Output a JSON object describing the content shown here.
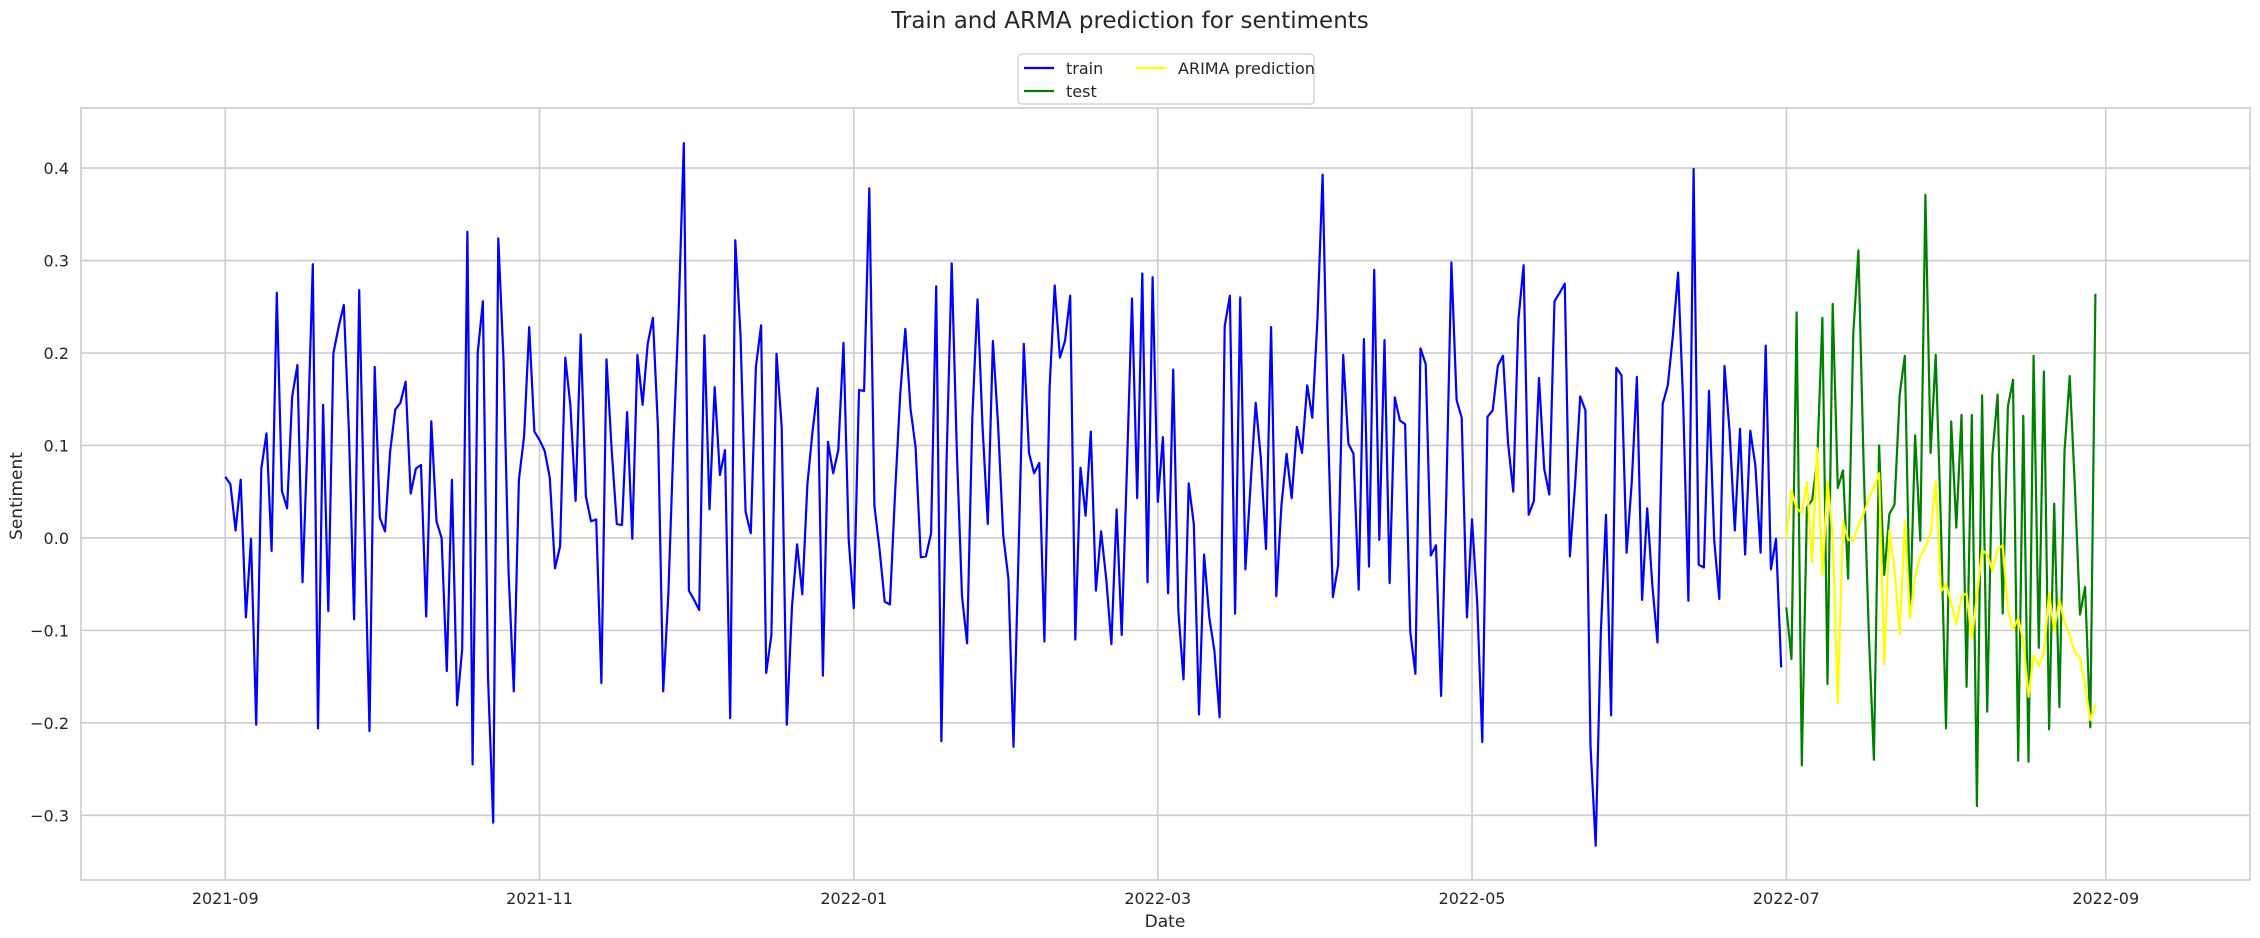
{
  "chart_data": {
    "type": "line",
    "title": "Train and ARMA prediction for sentiments",
    "xlabel": "Date",
    "ylabel": "Sentiment",
    "xlim": [
      "2021-08-04",
      "2022-09-29"
    ],
    "ylim": [
      -0.37,
      0.465
    ],
    "x_ticks": [
      "2021-09",
      "2021-11",
      "2022-01",
      "2022-03",
      "2022-05",
      "2022-07",
      "2022-09"
    ],
    "y_ticks": [
      -0.3,
      -0.2,
      -0.1,
      0.0,
      0.1,
      0.2,
      0.3,
      0.4
    ],
    "grid": true,
    "legend_position": "top-center",
    "series": [
      {
        "name": "train",
        "color": "#0000ff",
        "start_date": "2021-09-01",
        "end_date": "2022-06-30",
        "values": [
          0.066,
          0.058,
          0.008,
          0.063,
          -0.086,
          -0.001,
          -0.202,
          0.075,
          0.113,
          -0.014,
          0.265,
          0.051,
          0.032,
          0.153,
          0.187,
          -0.048,
          0.109,
          0.296,
          -0.206,
          0.144,
          -0.079,
          0.2,
          0.228,
          0.252,
          0.116,
          -0.088,
          0.268,
          0.017,
          -0.209,
          0.185,
          0.022,
          0.007,
          0.093,
          0.139,
          0.146,
          0.169,
          0.048,
          0.075,
          0.079,
          -0.085,
          0.126,
          0.018,
          0.0,
          -0.144,
          0.063,
          -0.181,
          -0.12,
          0.331,
          -0.245,
          0.2,
          0.256,
          -0.15,
          -0.308,
          0.324,
          0.193,
          -0.038,
          -0.166,
          0.063,
          0.11,
          0.228,
          0.115,
          0.106,
          0.094,
          0.065,
          -0.033,
          -0.009,
          0.195,
          0.143,
          0.04,
          0.22,
          0.045,
          0.018,
          0.02,
          -0.157,
          0.193,
          0.095,
          0.015,
          0.014,
          0.136,
          -0.001,
          0.198,
          0.144,
          0.21,
          0.238,
          0.118,
          -0.166,
          -0.062,
          0.103,
          0.243,
          0.427,
          -0.057,
          -0.067,
          -0.078,
          0.219,
          0.031,
          0.163,
          0.068,
          0.095,
          -0.195,
          0.322,
          0.22,
          0.028,
          0.005,
          0.185,
          0.23,
          -0.146,
          -0.105,
          0.199,
          0.12,
          -0.202,
          -0.074,
          -0.007,
          -0.061,
          0.058,
          0.116,
          0.162,
          -0.149,
          0.104,
          0.07,
          0.095,
          0.211,
          -0.002,
          -0.076,
          0.16,
          0.159,
          0.378,
          0.035,
          -0.013,
          -0.069,
          -0.072,
          0.047,
          0.155,
          0.226,
          0.14,
          0.098,
          -0.021,
          -0.02,
          0.005,
          0.272,
          -0.22,
          0.08,
          0.297,
          0.095,
          -0.063,
          -0.114,
          0.129,
          0.258,
          0.119,
          0.015,
          0.213,
          0.122,
          0.003,
          -0.044,
          -0.226,
          -0.01,
          0.21,
          0.092,
          0.07,
          0.081,
          -0.112,
          0.162,
          0.273,
          0.195,
          0.213,
          0.262,
          -0.11,
          0.076,
          0.024,
          0.115,
          -0.057,
          0.007,
          -0.045,
          -0.115,
          0.031,
          -0.105,
          0.074,
          0.259,
          0.043,
          0.286,
          -0.048,
          0.282,
          0.039,
          0.109,
          -0.06,
          0.182,
          -0.08,
          -0.153,
          0.059,
          0.015,
          -0.191,
          -0.018,
          -0.086,
          -0.122,
          -0.194,
          0.229,
          0.262,
          -0.082,
          0.26,
          -0.034,
          0.056,
          0.146,
          0.087,
          -0.012,
          0.228,
          -0.063,
          0.035,
          0.091,
          0.043,
          0.12,
          0.092,
          0.165,
          0.13,
          0.238,
          0.393,
          0.129,
          -0.064,
          -0.03,
          0.198,
          0.102,
          0.091,
          -0.056,
          0.215,
          -0.031,
          0.29,
          -0.002,
          0.214,
          -0.049,
          0.152,
          0.127,
          0.123,
          -0.101,
          -0.147,
          0.205,
          0.188,
          -0.019,
          -0.008,
          -0.171,
          0.046,
          0.298,
          0.149,
          0.13,
          -0.086,
          0.02,
          -0.07,
          -0.221,
          0.131,
          0.138,
          0.186,
          0.197,
          0.102,
          0.05,
          0.236,
          0.295,
          0.025,
          0.04,
          0.173,
          0.075,
          0.047,
          0.256,
          0.265,
          0.275,
          -0.02,
          0.058,
          0.153,
          0.138,
          -0.225,
          -0.333,
          -0.103,
          0.025,
          -0.192,
          0.184,
          0.176,
          -0.016,
          0.061,
          0.174,
          -0.067,
          0.032,
          -0.052,
          -0.113,
          0.145,
          0.165,
          0.22,
          0.287,
          0.142,
          -0.068,
          0.399,
          -0.029,
          -0.032,
          0.159,
          -0.002,
          -0.066,
          0.186,
          0.115,
          0.008,
          0.118,
          -0.018,
          0.116,
          0.078,
          -0.016,
          0.208,
          -0.034,
          -0.001,
          -0.14
        ]
      },
      {
        "name": "test",
        "color": "#008000",
        "start_date": "2022-07-01",
        "end_date": "2022-08-31",
        "values": [
          -0.075,
          -0.131,
          0.244,
          -0.246,
          0.033,
          0.041,
          0.083,
          0.238,
          -0.158,
          0.253,
          0.054,
          0.073,
          -0.044,
          0.221,
          0.311,
          0.08,
          -0.103,
          -0.24,
          0.1,
          -0.04,
          0.026,
          0.036,
          0.155,
          0.197,
          -0.086,
          0.111,
          -0.003,
          0.371,
          0.092,
          0.198,
          0.016,
          -0.206,
          0.126,
          0.011,
          0.133,
          -0.161,
          0.133,
          -0.29,
          0.154,
          -0.188,
          0.09,
          0.155,
          -0.082,
          0.142,
          0.171,
          -0.241,
          0.132,
          -0.242,
          0.197,
          -0.119,
          0.18,
          -0.207,
          0.037,
          -0.183,
          0.093,
          0.175,
          0.057,
          -0.083,
          -0.053,
          -0.205,
          0.264
        ]
      },
      {
        "name": "ARIMA prediction",
        "color": "#ffff00",
        "start_date": "2022-07-01",
        "end_date": "2022-08-31",
        "values": [
          0.0,
          0.051,
          0.032,
          0.027,
          0.06,
          -0.026,
          0.097,
          -0.041,
          0.06,
          0.003,
          -0.179,
          0.018,
          -0.002,
          -0.003,
          0.014,
          0.026,
          0.042,
          0.055,
          0.07,
          -0.137,
          0.008,
          -0.034,
          -0.104,
          0.018,
          -0.087,
          -0.042,
          -0.02,
          -0.01,
          0.005,
          0.062,
          -0.058,
          -0.05,
          -0.07,
          -0.093,
          -0.063,
          -0.06,
          -0.109,
          -0.063,
          -0.013,
          -0.018,
          -0.036,
          -0.012,
          -0.008,
          -0.077,
          -0.099,
          -0.087,
          -0.111,
          -0.172,
          -0.127,
          -0.138,
          -0.124,
          -0.06,
          -0.1,
          -0.067,
          -0.091,
          -0.105,
          -0.124,
          -0.129,
          -0.161,
          -0.197,
          -0.18
        ]
      }
    ]
  }
}
